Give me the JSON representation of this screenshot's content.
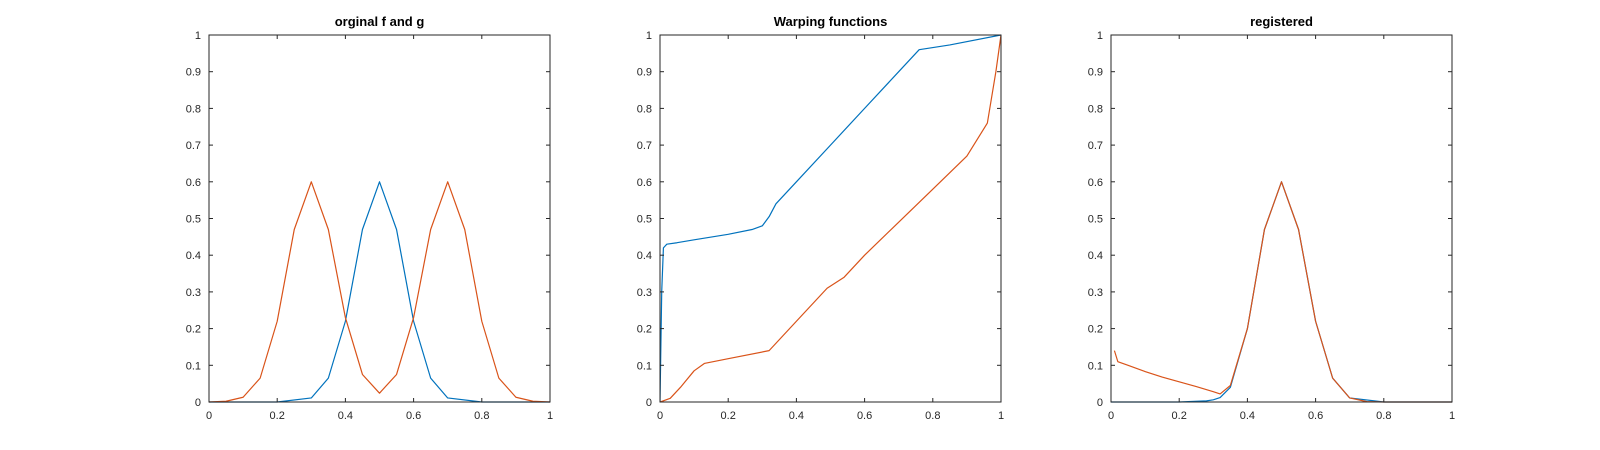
{
  "colors": {
    "blue": "#0072BD",
    "orange": "#D95319",
    "axis": "#262626",
    "background": "#ffffff"
  },
  "chart_data": [
    {
      "type": "line",
      "title": "orginal f and g",
      "xlim": [
        0,
        1
      ],
      "ylim": [
        0,
        1
      ],
      "xticks": [
        "0",
        "0.2",
        "0.4",
        "0.6",
        "0.8",
        "1"
      ],
      "yticks": [
        "0",
        "0.1",
        "0.2",
        "0.3",
        "0.4",
        "0.5",
        "0.6",
        "0.7",
        "0.8",
        "0.9",
        "1"
      ],
      "grid": false,
      "series": [
        {
          "color": "#0072BD",
          "x": [
            0,
            0.2,
            0.3,
            0.35,
            0.4,
            0.45,
            0.5,
            0.55,
            0.6,
            0.65,
            0.7,
            0.8,
            1
          ],
          "y": [
            0,
            0,
            0.011,
            0.065,
            0.22,
            0.47,
            0.6,
            0.47,
            0.22,
            0.065,
            0.011,
            0,
            0
          ]
        },
        {
          "color": "#D95319",
          "x": [
            0,
            0.05,
            0.1,
            0.15,
            0.2,
            0.25,
            0.3,
            0.35,
            0.4,
            0.45,
            0.5,
            0.55,
            0.6,
            0.65,
            0.7,
            0.75,
            0.8,
            0.85,
            0.9,
            0.95,
            1
          ],
          "y": [
            0,
            0.002,
            0.013,
            0.065,
            0.22,
            0.47,
            0.6,
            0.47,
            0.23,
            0.075,
            0.024,
            0.075,
            0.23,
            0.47,
            0.6,
            0.47,
            0.22,
            0.065,
            0.013,
            0.002,
            0
          ]
        }
      ]
    },
    {
      "type": "line",
      "title": "Warping functions",
      "xlim": [
        0,
        1
      ],
      "ylim": [
        0,
        1
      ],
      "xticks": [
        "0",
        "0.2",
        "0.4",
        "0.6",
        "0.8",
        "1"
      ],
      "yticks": [
        "0",
        "0.1",
        "0.2",
        "0.3",
        "0.4",
        "0.5",
        "0.6",
        "0.7",
        "0.8",
        "0.9",
        "1"
      ],
      "grid": false,
      "series": [
        {
          "color": "#0072BD",
          "x": [
            0,
            0.005,
            0.01,
            0.02,
            0.05,
            0.1,
            0.2,
            0.27,
            0.3,
            0.32,
            0.34,
            0.4,
            0.5,
            0.6,
            0.7,
            0.76,
            0.85,
            1
          ],
          "y": [
            0,
            0.3,
            0.42,
            0.43,
            0.434,
            0.442,
            0.457,
            0.47,
            0.48,
            0.505,
            0.54,
            0.6,
            0.7,
            0.8,
            0.9,
            0.96,
            0.973,
            1
          ]
        },
        {
          "color": "#D95319",
          "x": [
            0,
            0.03,
            0.06,
            0.1,
            0.13,
            0.2,
            0.32,
            0.4,
            0.49,
            0.54,
            0.6,
            0.7,
            0.8,
            0.9,
            0.96,
            0.985,
            1
          ],
          "y": [
            0,
            0.01,
            0.04,
            0.085,
            0.105,
            0.118,
            0.14,
            0.22,
            0.31,
            0.34,
            0.4,
            0.49,
            0.58,
            0.67,
            0.76,
            0.9,
            1
          ]
        }
      ]
    },
    {
      "type": "line",
      "title": "registered",
      "xlim": [
        0,
        1
      ],
      "ylim": [
        0,
        1
      ],
      "xticks": [
        "0",
        "0.2",
        "0.4",
        "0.6",
        "0.8",
        "1"
      ],
      "yticks": [
        "0",
        "0.1",
        "0.2",
        "0.3",
        "0.4",
        "0.5",
        "0.6",
        "0.7",
        "0.8",
        "0.9",
        "1"
      ],
      "grid": false,
      "series": [
        {
          "color": "#0072BD",
          "x": [
            0,
            0.2,
            0.28,
            0.3,
            0.32,
            0.35,
            0.4,
            0.45,
            0.5,
            0.55,
            0.6,
            0.65,
            0.7,
            0.8,
            1
          ],
          "y": [
            0,
            0,
            0.003,
            0.006,
            0.012,
            0.04,
            0.2,
            0.47,
            0.6,
            0.47,
            0.22,
            0.065,
            0.011,
            0,
            0
          ]
        },
        {
          "color": "#D95319",
          "x": [
            0.01,
            0.02,
            0.05,
            0.1,
            0.15,
            0.2,
            0.25,
            0.3,
            0.32,
            0.35,
            0.4,
            0.45,
            0.5,
            0.55,
            0.6,
            0.65,
            0.7,
            0.75,
            0.8,
            1
          ],
          "y": [
            0.14,
            0.11,
            0.1,
            0.083,
            0.068,
            0.055,
            0.042,
            0.028,
            0.022,
            0.045,
            0.2,
            0.47,
            0.6,
            0.47,
            0.22,
            0.065,
            0.011,
            0.001,
            0,
            0
          ]
        }
      ]
    }
  ]
}
